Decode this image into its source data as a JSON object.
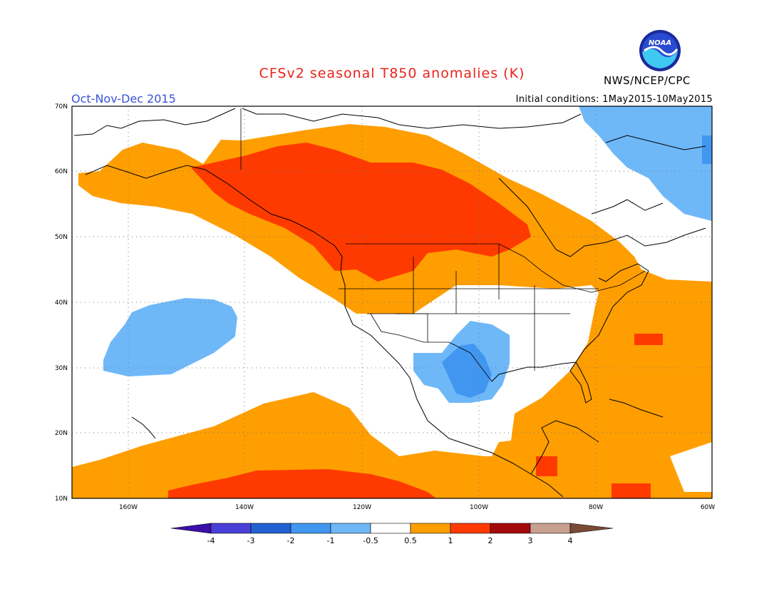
{
  "header": {
    "title": "CFSv2 seasonal T850 anomalies (K)",
    "organization": "NWS/NCEP/CPC",
    "period": "Oct-Nov-Dec 2015",
    "initial_conditions": "Initial conditions: 1May2015-10May2015",
    "logo_text": "NOAA"
  },
  "map": {
    "lat_labels": [
      "70N",
      "60N",
      "50N",
      "40N",
      "30N",
      "20N",
      "10N"
    ],
    "lon_labels": [
      "160W",
      "140W",
      "120W",
      "100W",
      "80W",
      "60W"
    ],
    "colors": {
      "orange": "#ff9e00",
      "red": "#ff3a00",
      "light_blue": "#6eb8f8",
      "blue": "#4196f0"
    }
  },
  "legend": {
    "labels": [
      "-4",
      "-3",
      "-2",
      "-1",
      "-0.5",
      "0.5",
      "1",
      "2",
      "3",
      "4"
    ],
    "colors": [
      "#3b0fa8",
      "#4a40d8",
      "#2262d0",
      "#4196f0",
      "#6eb8f8",
      "#ffffff",
      "#ff9e00",
      "#ff3a00",
      "#a50a0a",
      "#c8a090",
      "#7a4a35"
    ]
  }
}
